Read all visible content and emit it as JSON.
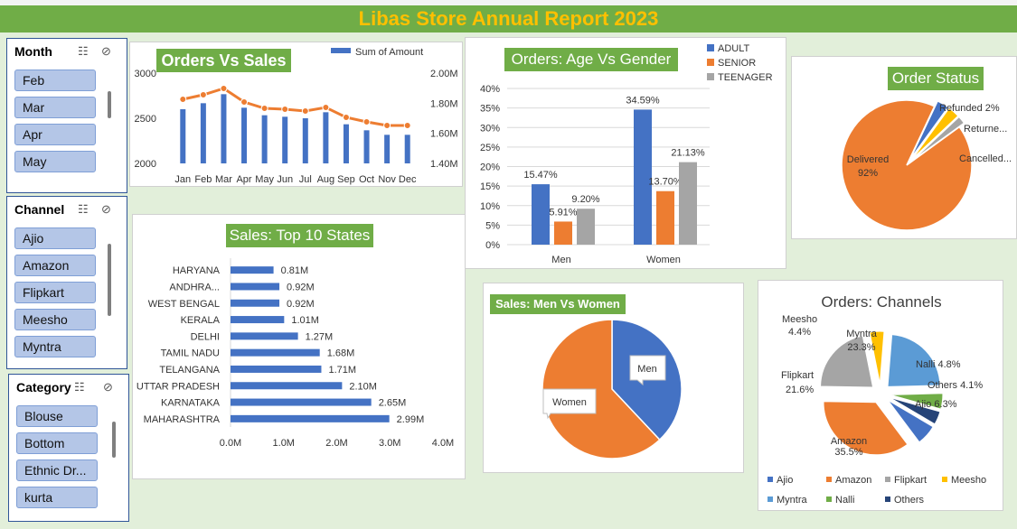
{
  "title": "Libas Store Annual Report 2023",
  "colors": {
    "blue": "#4472c4",
    "orange": "#ed7d31",
    "gray": "#a5a5a5",
    "yellow": "#ffc000",
    "lightblue": "#5b9bd5",
    "green": "#70ad47",
    "navy": "#264478",
    "banner": "#70ad47",
    "banner_text": "#ffc000"
  },
  "slicers": [
    {
      "name": "Month",
      "items": [
        "Feb",
        "Mar",
        "Apr",
        "May"
      ]
    },
    {
      "name": "Channel",
      "items": [
        "Ajio",
        "Amazon",
        "Flipkart",
        "Meesho",
        "Myntra"
      ]
    },
    {
      "name": "Category",
      "items": [
        "Blouse",
        "Bottom",
        "Ethnic Dr...",
        "kurta"
      ]
    }
  ],
  "chart_data": [
    {
      "id": "orders-vs-sales",
      "type": "bar+line",
      "title": "Orders Vs Sales",
      "categories": [
        "Jan",
        "Feb",
        "Mar",
        "Apr",
        "May",
        "Jun",
        "Jul",
        "Aug",
        "Sep",
        "Oct",
        "Nov",
        "Dec"
      ],
      "series": [
        {
          "name": "Sum of Amount",
          "type": "bar",
          "axis": "right",
          "values": [
            1.76,
            1.8,
            1.86,
            1.77,
            1.72,
            1.71,
            1.7,
            1.74,
            1.66,
            1.62,
            1.59,
            1.59
          ]
        },
        {
          "name": "",
          "type": "line",
          "axis": "left",
          "values": [
            2710,
            2760,
            2830,
            2680,
            2610,
            2600,
            2580,
            2620,
            2510,
            2460,
            2420,
            2420
          ]
        }
      ],
      "yleft": {
        "ticks": [
          "2000",
          "2500",
          "3000"
        ],
        "min": 2000,
        "max": 3000
      },
      "yright": {
        "ticks": [
          "1.40M",
          "1.60M",
          "1.80M",
          "2.00M"
        ],
        "min": 1.4,
        "max": 2.0
      },
      "legend": "top-right"
    },
    {
      "id": "age-vs-gender",
      "type": "bar",
      "title": "Orders: Age Vs Gender",
      "categories": [
        "Men",
        "Women"
      ],
      "series": [
        {
          "name": "ADULT",
          "values": [
            15.47,
            34.59
          ],
          "labels": [
            "15.47%",
            "34.59%"
          ]
        },
        {
          "name": "SENIOR",
          "values": [
            5.91,
            13.7
          ],
          "labels": [
            "5.91%",
            "13.70%"
          ]
        },
        {
          "name": "TEENAGER",
          "values": [
            9.2,
            21.13
          ],
          "labels": [
            "9.20%",
            "21.13%"
          ]
        }
      ],
      "yticks": [
        "0%",
        "5%",
        "10%",
        "15%",
        "20%",
        "25%",
        "30%",
        "35%",
        "40%"
      ],
      "ylim": [
        0,
        40
      ],
      "legend": "top-right"
    },
    {
      "id": "order-status",
      "type": "pie",
      "title": "Order Status",
      "slices": [
        {
          "label": "Delivered",
          "pct_label": "92%",
          "value": 92
        },
        {
          "label": "Cancelled...",
          "pct_label": "",
          "value": 3
        },
        {
          "label": "Returne...",
          "pct_label": "",
          "value": 3
        },
        {
          "label": "Refunded",
          "pct_label": "2%",
          "value": 2
        }
      ]
    },
    {
      "id": "top-states",
      "type": "bar",
      "orientation": "horizontal",
      "title": "Sales: Top 10 States",
      "categories": [
        "HARYANA",
        "ANDHRA...",
        "WEST BENGAL",
        "KERALA",
        "DELHI",
        "TAMIL NADU",
        "TELANGANA",
        "UTTAR PRADESH",
        "KARNATAKA",
        "MAHARASHTRA"
      ],
      "values": [
        0.81,
        0.92,
        0.92,
        1.01,
        1.27,
        1.68,
        1.71,
        2.1,
        2.65,
        2.99
      ],
      "labels": [
        "0.81M",
        "0.92M",
        "0.92M",
        "1.01M",
        "1.27M",
        "1.68M",
        "1.71M",
        "2.10M",
        "2.65M",
        "2.99M"
      ],
      "xticks": [
        "0.0M",
        "1.0M",
        "2.0M",
        "3.0M",
        "4.0M"
      ],
      "xlim": [
        0,
        4
      ]
    },
    {
      "id": "men-vs-women",
      "type": "pie",
      "title": "Sales: Men Vs Women",
      "slices": [
        {
          "label": "Men",
          "value": 38
        },
        {
          "label": "Women",
          "value": 62
        }
      ]
    },
    {
      "id": "channels",
      "type": "pie",
      "title": "Orders: Channels",
      "slices": [
        {
          "label": "Ajio",
          "pct_label": "6.3%",
          "value": 6.3
        },
        {
          "label": "Amazon",
          "pct_label": "35.5%",
          "value": 35.5
        },
        {
          "label": "Flipkart",
          "pct_label": "21.6%",
          "value": 21.6
        },
        {
          "label": "Meesho",
          "pct_label": "4.4%",
          "value": 4.4
        },
        {
          "label": "Myntra",
          "pct_label": "23.3%",
          "value": 23.3
        },
        {
          "label": "Nalli",
          "pct_label": "4.8%",
          "value": 4.8
        },
        {
          "label": "Others",
          "pct_label": "4.1%",
          "value": 4.1
        }
      ],
      "legend": "bottom"
    }
  ]
}
